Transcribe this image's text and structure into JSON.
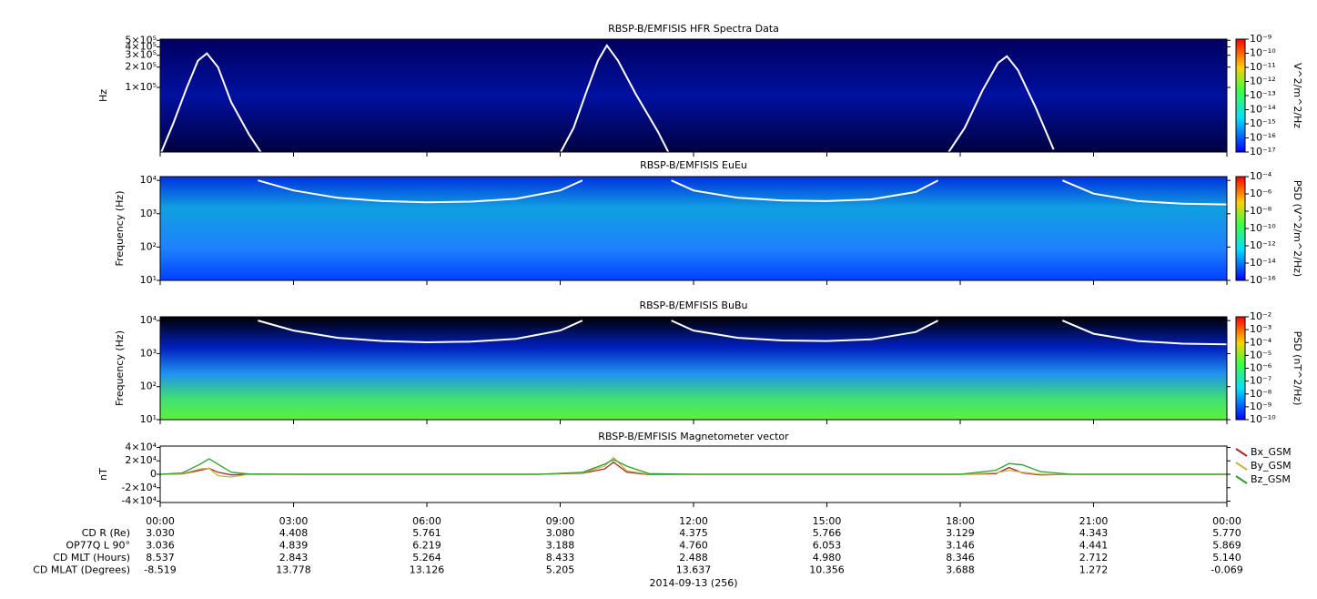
{
  "chart_data": [
    {
      "type": "spectrogram",
      "title": "RBSP-B/EMFISIS  HFR Spectra Data",
      "ylabel": "Hz",
      "log_y": true,
      "ylim": [
        11000,
        520000
      ],
      "yticks": [
        {
          "value": 500000,
          "label": "5×10⁵"
        },
        {
          "value": 400000,
          "label": "4×10⁵"
        },
        {
          "value": 300000,
          "label": "3×10⁵"
        },
        {
          "value": 200000,
          "label": "2×10⁵"
        },
        {
          "value": 100000,
          "label": "1×10⁵"
        }
      ],
      "colorbar": {
        "label": "V^2/m^2/Hz",
        "zlim": [
          1e-17,
          1e-09
        ],
        "zticks": [
          {
            "value": 1e-09,
            "label": "10⁻⁹"
          },
          {
            "value": 1e-10,
            "label": "10⁻¹⁰"
          },
          {
            "value": 1e-11,
            "label": "10⁻¹¹"
          },
          {
            "value": 1e-12,
            "label": "10⁻¹²"
          },
          {
            "value": 1e-13,
            "label": "10⁻¹³"
          },
          {
            "value": 1e-14,
            "label": "10⁻¹⁴"
          },
          {
            "value": 1e-15,
            "label": "10⁻¹⁵"
          },
          {
            "value": 1e-16,
            "label": "10⁻¹⁶"
          },
          {
            "value": 1e-17,
            "label": "10⁻¹⁷"
          }
        ]
      },
      "series": [
        {
          "color": "#ffffff",
          "x": [
            0,
            0.3,
            0.6,
            0.85,
            1.05,
            1.3,
            1.6,
            2.0,
            2.4,
            null,
            8.9,
            9.3,
            9.6,
            9.85,
            10.05,
            10.3,
            10.7,
            11.2,
            11.5,
            null,
            17.6,
            18.1,
            18.5,
            18.85,
            19.05,
            19.3,
            19.7,
            20.1
          ],
          "values": [
            10000,
            30000,
            100000,
            250000,
            320000,
            200000,
            60000,
            20000,
            8000,
            null,
            8000,
            25000,
            90000,
            250000,
            420000,
            250000,
            80000,
            22000,
            9000,
            null,
            8000,
            25000,
            90000,
            230000,
            290000,
            180000,
            50000,
            12000
          ]
        }
      ]
    },
    {
      "type": "spectrogram",
      "title": "RBSP-B/EMFISIS  EuEu",
      "ylabel": "Frequency (Hz)",
      "log_y": true,
      "ylim": [
        10,
        13000
      ],
      "yticks": [
        {
          "value": 10,
          "label": "10¹"
        },
        {
          "value": 100,
          "label": "10²"
        },
        {
          "value": 1000,
          "label": "10³"
        },
        {
          "value": 10000,
          "label": "10⁴"
        }
      ],
      "colorbar": {
        "label": "PSD (V^2/m^2/Hz)",
        "zlim": [
          1e-16,
          0.0001
        ],
        "zticks": [
          {
            "value": 0.0001,
            "label": "10⁻⁴"
          },
          {
            "value": 1e-06,
            "label": "10⁻⁶"
          },
          {
            "value": 1e-08,
            "label": "10⁻⁸"
          },
          {
            "value": 1e-10,
            "label": "10⁻¹⁰"
          },
          {
            "value": 1e-12,
            "label": "10⁻¹²"
          },
          {
            "value": 1e-14,
            "label": "10⁻¹⁴"
          },
          {
            "value": 1e-16,
            "label": "10⁻¹⁶"
          }
        ]
      },
      "series": [
        {
          "color": "#ffffff",
          "x": [
            2.2,
            3,
            4,
            5,
            6,
            7,
            8,
            9,
            9.5,
            null,
            11.5,
            12,
            13,
            14,
            15,
            16,
            17,
            17.5,
            null,
            20.3,
            21,
            22,
            23,
            24
          ],
          "values": [
            10000,
            5000,
            3000,
            2400,
            2200,
            2300,
            2800,
            5000,
            10000,
            null,
            10000,
            5000,
            3000,
            2500,
            2400,
            2700,
            4500,
            10000,
            null,
            10000,
            4000,
            2400,
            2000,
            1900
          ]
        }
      ]
    },
    {
      "type": "spectrogram",
      "title": "RBSP-B/EMFISIS  BuBu",
      "ylabel": "Frequency (Hz)",
      "log_y": true,
      "ylim": [
        10,
        13000
      ],
      "yticks": [
        {
          "value": 10,
          "label": "10¹"
        },
        {
          "value": 100,
          "label": "10²"
        },
        {
          "value": 1000,
          "label": "10³"
        },
        {
          "value": 10000,
          "label": "10⁴"
        }
      ],
      "colorbar": {
        "label": "PSD (nT^2/Hz)",
        "zlim": [
          1e-10,
          0.01
        ],
        "zticks": [
          {
            "value": 0.01,
            "label": "10⁻²"
          },
          {
            "value": 0.001,
            "label": "10⁻³"
          },
          {
            "value": 0.0001,
            "label": "10⁻⁴"
          },
          {
            "value": 1e-05,
            "label": "10⁻⁵"
          },
          {
            "value": 1e-06,
            "label": "10⁻⁶"
          },
          {
            "value": 1e-07,
            "label": "10⁻⁷"
          },
          {
            "value": 1e-08,
            "label": "10⁻⁸"
          },
          {
            "value": 1e-09,
            "label": "10⁻⁹"
          },
          {
            "value": 1e-10,
            "label": "10⁻¹⁰"
          }
        ]
      },
      "series": [
        {
          "color": "#ffffff",
          "x": [
            2.2,
            3,
            4,
            5,
            6,
            7,
            8,
            9,
            9.5,
            null,
            11.5,
            12,
            13,
            14,
            15,
            16,
            17,
            17.5,
            null,
            20.3,
            21,
            22,
            23,
            24
          ],
          "values": [
            10000,
            5000,
            3000,
            2400,
            2200,
            2300,
            2800,
            5000,
            10000,
            null,
            10000,
            5000,
            3000,
            2500,
            2400,
            2700,
            4500,
            10000,
            null,
            10000,
            4000,
            2400,
            2000,
            1900
          ]
        }
      ]
    },
    {
      "type": "line",
      "title": "RBSP-B/EMFISIS  Magnetometer vector",
      "ylabel": "nT",
      "ylim": [
        -42000,
        42000
      ],
      "yticks": [
        {
          "value": 40000,
          "label": "4×10⁴"
        },
        {
          "value": 20000,
          "label": "2×10⁴"
        },
        0,
        {
          "value": -20000,
          "label": "-2×10⁴"
        },
        {
          "value": -40000,
          "label": "-4×10⁴"
        }
      ],
      "xlim": [
        0,
        24
      ],
      "xticks": [
        {
          "value": 0,
          "label": "00:00"
        },
        {
          "value": 3,
          "label": "03:00"
        },
        {
          "value": 6,
          "label": "06:00"
        },
        {
          "value": 9,
          "label": "09:00"
        },
        {
          "value": 12,
          "label": "12:00"
        },
        {
          "value": 15,
          "label": "15:00"
        },
        {
          "value": 18,
          "label": "18:00"
        },
        {
          "value": 21,
          "label": "21:00"
        },
        {
          "value": 24,
          "label": "00:00"
        }
      ],
      "x": [
        0,
        0.5,
        0.9,
        1.1,
        1.3,
        1.6,
        2,
        3,
        8.5,
        9.5,
        10,
        10.2,
        10.5,
        11,
        12,
        18,
        18.8,
        19.1,
        19.4,
        19.8,
        20.5,
        24
      ],
      "series": [
        {
          "name": "Bx_GSM",
          "color": "#a52a2a",
          "values": [
            0,
            500,
            6000,
            9000,
            3000,
            -1000,
            0,
            0,
            0,
            1500,
            8000,
            18000,
            3000,
            -500,
            0,
            0,
            1000,
            10000,
            2000,
            -1000,
            0,
            0
          ]
        },
        {
          "name": "By_GSM",
          "color": "#c8b040",
          "values": [
            0,
            1000,
            8000,
            9000,
            -2000,
            -4000,
            0,
            0,
            0,
            2000,
            12000,
            25000,
            5000,
            0,
            0,
            0,
            2000,
            6000,
            3000,
            0,
            0,
            0
          ]
        },
        {
          "name": "Bz_GSM",
          "color": "#2ca02c",
          "values": [
            0,
            2000,
            15000,
            23000,
            15000,
            3000,
            500,
            0,
            0,
            3000,
            15000,
            22000,
            12000,
            1000,
            0,
            0,
            6000,
            16000,
            14000,
            4000,
            0,
            0
          ]
        }
      ]
    }
  ],
  "ephemeris": {
    "labels": [
      "CD R (Re)",
      "OP77Q L 90°",
      "CD MLT (Hours)",
      "CD MLAT (Degrees)"
    ],
    "rows": [
      [
        "3.030",
        "4.408",
        "5.761",
        "3.080",
        "4.375",
        "5.766",
        "3.129",
        "4.343",
        "5.770"
      ],
      [
        "3.036",
        "4.839",
        "6.219",
        "3.188",
        "4.760",
        "6.053",
        "3.146",
        "4.441",
        "5.869"
      ],
      [
        "8.537",
        "2.843",
        "5.264",
        "8.433",
        "2.488",
        "4.980",
        "8.346",
        "2.712",
        "5.140"
      ],
      [
        "-8.519",
        "13.778",
        "13.126",
        "5.205",
        "13.637",
        "10.356",
        "3.688",
        "1.272",
        "-0.069"
      ]
    ],
    "date": "2014-09-13 (256)"
  }
}
